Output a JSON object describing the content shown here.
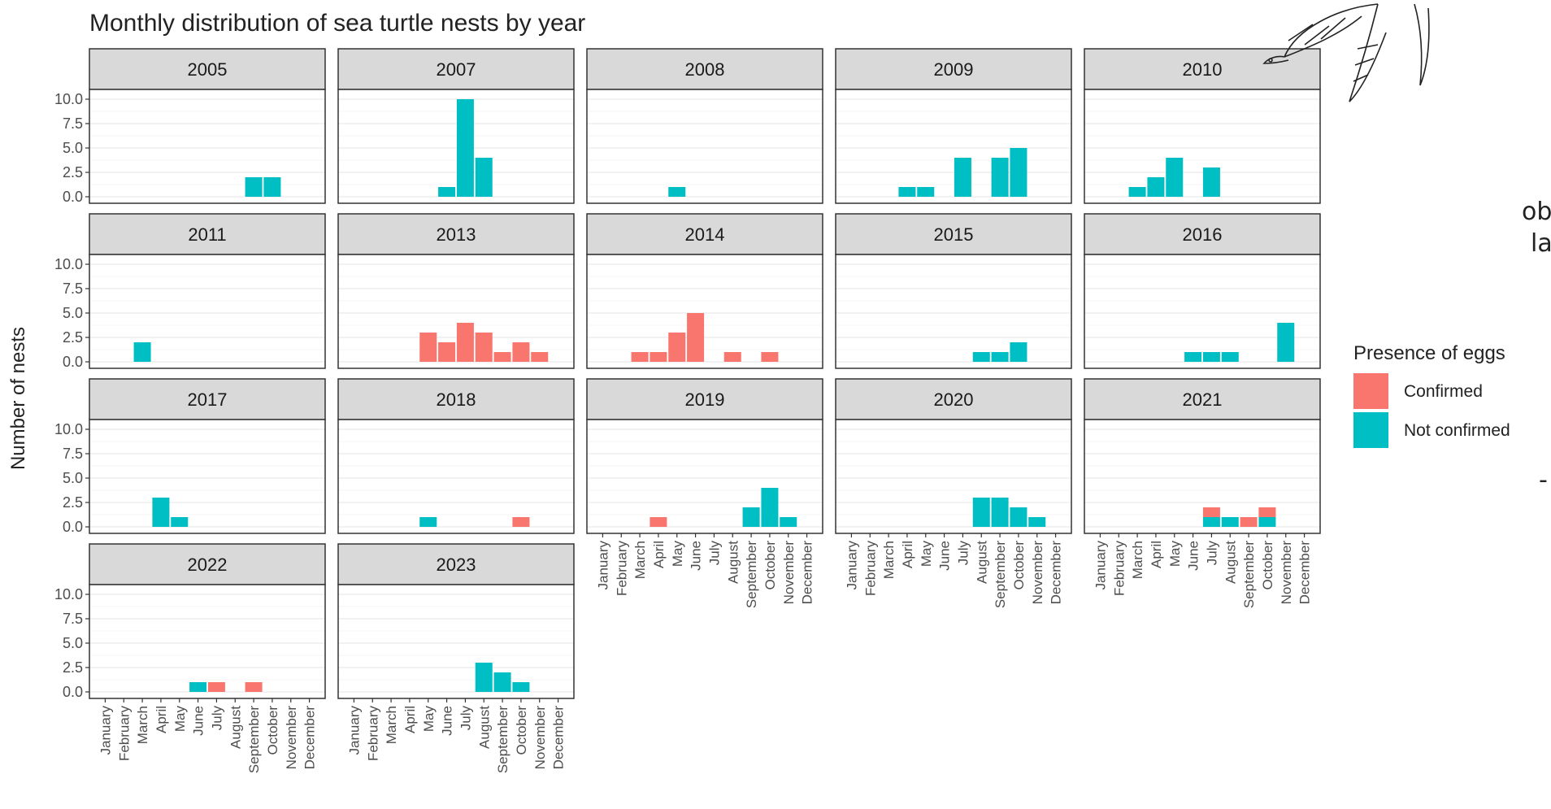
{
  "page": {
    "overflow_text": [
      "ob",
      "la",
      "-"
    ]
  },
  "chart_data": {
    "type": "bar",
    "title": "Monthly distribution of sea turtle nests by year",
    "xlabel": "",
    "ylabel": "Number of nests",
    "ylim": [
      0,
      11
    ],
    "yticks": [
      "0.0",
      "2.5",
      "5.0",
      "7.5",
      "10.0"
    ],
    "stacked": true,
    "grid": true,
    "legend": {
      "title": "Presence of eggs",
      "placement": "right",
      "entries": [
        {
          "key": "confirmed",
          "label": "Confirmed",
          "color": "#f8766d"
        },
        {
          "key": "not_confirmed",
          "label": "Not confirmed",
          "color": "#00bfc4"
        }
      ]
    },
    "categories": [
      "January",
      "February",
      "March",
      "April",
      "May",
      "June",
      "July",
      "August",
      "September",
      "October",
      "November",
      "December"
    ],
    "panels": [
      {
        "year": "2005",
        "bars": [
          {
            "month": "September",
            "not_confirmed": 2
          },
          {
            "month": "October",
            "not_confirmed": 2
          }
        ]
      },
      {
        "year": "2007",
        "bars": [
          {
            "month": "June",
            "not_confirmed": 1
          },
          {
            "month": "July",
            "not_confirmed": 10
          },
          {
            "month": "August",
            "not_confirmed": 4
          }
        ]
      },
      {
        "year": "2008",
        "bars": [
          {
            "month": "May",
            "not_confirmed": 1
          }
        ]
      },
      {
        "year": "2009",
        "bars": [
          {
            "month": "April",
            "not_confirmed": 1
          },
          {
            "month": "May",
            "not_confirmed": 1
          },
          {
            "month": "July",
            "not_confirmed": 4
          },
          {
            "month": "September",
            "not_confirmed": 4
          },
          {
            "month": "October",
            "not_confirmed": 5
          }
        ]
      },
      {
        "year": "2010",
        "bars": [
          {
            "month": "March",
            "not_confirmed": 1
          },
          {
            "month": "April",
            "not_confirmed": 2
          },
          {
            "month": "May",
            "not_confirmed": 4
          },
          {
            "month": "July",
            "not_confirmed": 3
          }
        ]
      },
      {
        "year": "2011",
        "bars": [
          {
            "month": "March",
            "not_confirmed": 2
          }
        ]
      },
      {
        "year": "2013",
        "bars": [
          {
            "month": "May",
            "confirmed": 3
          },
          {
            "month": "June",
            "confirmed": 2
          },
          {
            "month": "July",
            "confirmed": 4
          },
          {
            "month": "August",
            "confirmed": 3
          },
          {
            "month": "September",
            "confirmed": 1
          },
          {
            "month": "October",
            "confirmed": 2
          },
          {
            "month": "November",
            "confirmed": 1
          }
        ]
      },
      {
        "year": "2014",
        "bars": [
          {
            "month": "March",
            "confirmed": 1
          },
          {
            "month": "April",
            "confirmed": 1
          },
          {
            "month": "May",
            "confirmed": 3
          },
          {
            "month": "June",
            "confirmed": 5
          },
          {
            "month": "August",
            "confirmed": 1
          },
          {
            "month": "October",
            "confirmed": 1
          }
        ]
      },
      {
        "year": "2015",
        "bars": [
          {
            "month": "August",
            "not_confirmed": 1
          },
          {
            "month": "September",
            "not_confirmed": 1
          },
          {
            "month": "October",
            "not_confirmed": 2
          }
        ]
      },
      {
        "year": "2016",
        "bars": [
          {
            "month": "June",
            "not_confirmed": 1
          },
          {
            "month": "July",
            "not_confirmed": 1
          },
          {
            "month": "August",
            "not_confirmed": 1
          },
          {
            "month": "November",
            "not_confirmed": 4
          }
        ]
      },
      {
        "year": "2017",
        "bars": [
          {
            "month": "April",
            "not_confirmed": 3
          },
          {
            "month": "May",
            "not_confirmed": 1
          }
        ]
      },
      {
        "year": "2018",
        "bars": [
          {
            "month": "May",
            "not_confirmed": 1
          },
          {
            "month": "October",
            "confirmed": 1
          }
        ]
      },
      {
        "year": "2019",
        "bars": [
          {
            "month": "April",
            "confirmed": 1
          },
          {
            "month": "September",
            "not_confirmed": 2
          },
          {
            "month": "October",
            "not_confirmed": 4
          },
          {
            "month": "November",
            "not_confirmed": 1
          }
        ]
      },
      {
        "year": "2020",
        "bars": [
          {
            "month": "August",
            "not_confirmed": 3
          },
          {
            "month": "September",
            "not_confirmed": 3
          },
          {
            "month": "October",
            "not_confirmed": 2
          },
          {
            "month": "November",
            "not_confirmed": 1
          }
        ]
      },
      {
        "year": "2021",
        "bars": [
          {
            "month": "July",
            "confirmed": 1,
            "not_confirmed": 1
          },
          {
            "month": "August",
            "not_confirmed": 1
          },
          {
            "month": "September",
            "confirmed": 1
          },
          {
            "month": "October",
            "confirmed": 1,
            "not_confirmed": 1
          }
        ]
      },
      {
        "year": "2022",
        "bars": [
          {
            "month": "June",
            "not_confirmed": 1
          },
          {
            "month": "July",
            "confirmed": 1
          },
          {
            "month": "September",
            "confirmed": 1
          }
        ]
      },
      {
        "year": "2023",
        "bars": [
          {
            "month": "August",
            "not_confirmed": 3
          },
          {
            "month": "September",
            "not_confirmed": 2
          },
          {
            "month": "October",
            "not_confirmed": 1
          }
        ]
      }
    ]
  }
}
